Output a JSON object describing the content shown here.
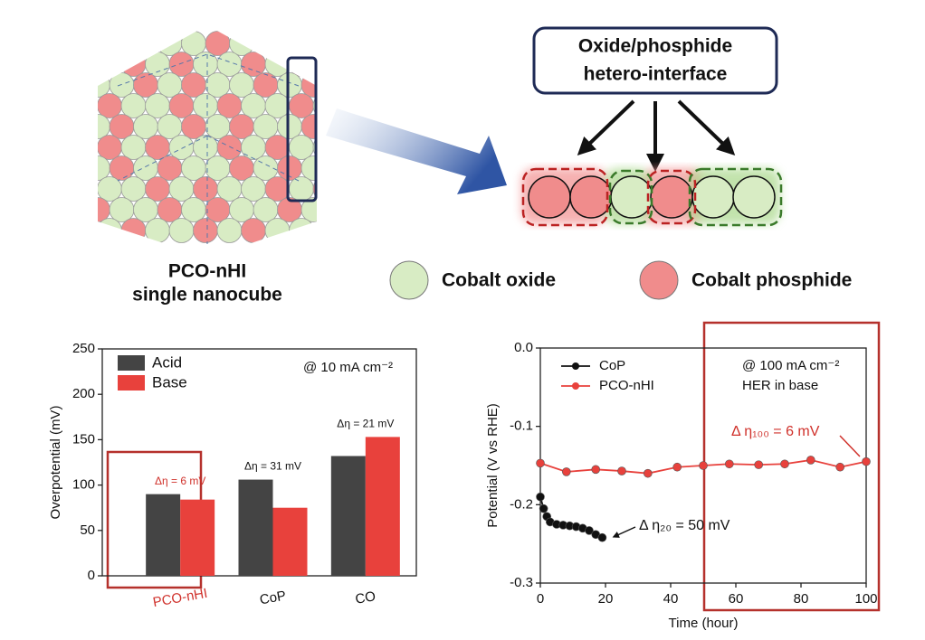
{
  "schematic": {
    "title_lines": [
      "Oxide/phosphide",
      "hetero-interface"
    ],
    "caption_lines": [
      "PCO-nHI",
      "single nanocube"
    ],
    "legend": [
      "Cobalt oxide",
      "Cobalt phosphide"
    ]
  },
  "chart_data": [
    {
      "type": "bar",
      "title": "@ 10 mA cm⁻²",
      "ylabel": "Overpotential (mV)",
      "categories": [
        "PCO-nHI",
        "CoP",
        "CO"
      ],
      "series": [
        {
          "name": "Acid",
          "color": "#444444",
          "values": [
            90,
            106,
            132
          ]
        },
        {
          "name": "Base",
          "color": "#e8413c",
          "values": [
            84,
            75,
            153
          ]
        }
      ],
      "annotations": [
        "Δη = 6 mV",
        "Δη = 31 mV",
        "Δη = 21 mV"
      ],
      "ylim": [
        0,
        250
      ],
      "yticks": [
        0,
        50,
        100,
        150,
        200,
        250
      ],
      "legend": "upper left"
    },
    {
      "type": "line",
      "title_lines": [
        "@ 100 mA cm⁻²",
        "HER in base"
      ],
      "xlabel": "Time (hour)",
      "ylabel": "Potential (V vs RHE)",
      "series": [
        {
          "name": "CoP",
          "color": "#111111",
          "x": [
            0,
            1,
            2,
            3,
            5,
            7,
            9,
            11,
            13,
            15,
            17,
            19
          ],
          "values": [
            -0.19,
            -0.205,
            -0.215,
            -0.222,
            -0.225,
            -0.226,
            -0.227,
            -0.228,
            -0.23,
            -0.233,
            -0.238,
            -0.242
          ]
        },
        {
          "name": "PCO-nHI",
          "color": "#e8413c",
          "x": [
            0,
            8,
            17,
            25,
            33,
            42,
            50,
            58,
            67,
            75,
            83,
            92,
            100
          ],
          "values": [
            -0.147,
            -0.158,
            -0.155,
            -0.157,
            -0.16,
            -0.152,
            -0.15,
            -0.148,
            -0.149,
            -0.148,
            -0.143,
            -0.152,
            -0.145
          ]
        }
      ],
      "annotations": [
        "Δ η₁₀₀ = 6 mV",
        "Δ η₂₀ = 50 mV"
      ],
      "xlim": [
        0,
        100
      ],
      "xticks": [
        0,
        20,
        40,
        60,
        80,
        100
      ],
      "ylim": [
        -0.3,
        0
      ],
      "yticks": [
        -0.3,
        -0.2,
        -0.1,
        {
          "value": 0,
          "label": "0.0"
        }
      ],
      "legend": "upper left"
    }
  ]
}
